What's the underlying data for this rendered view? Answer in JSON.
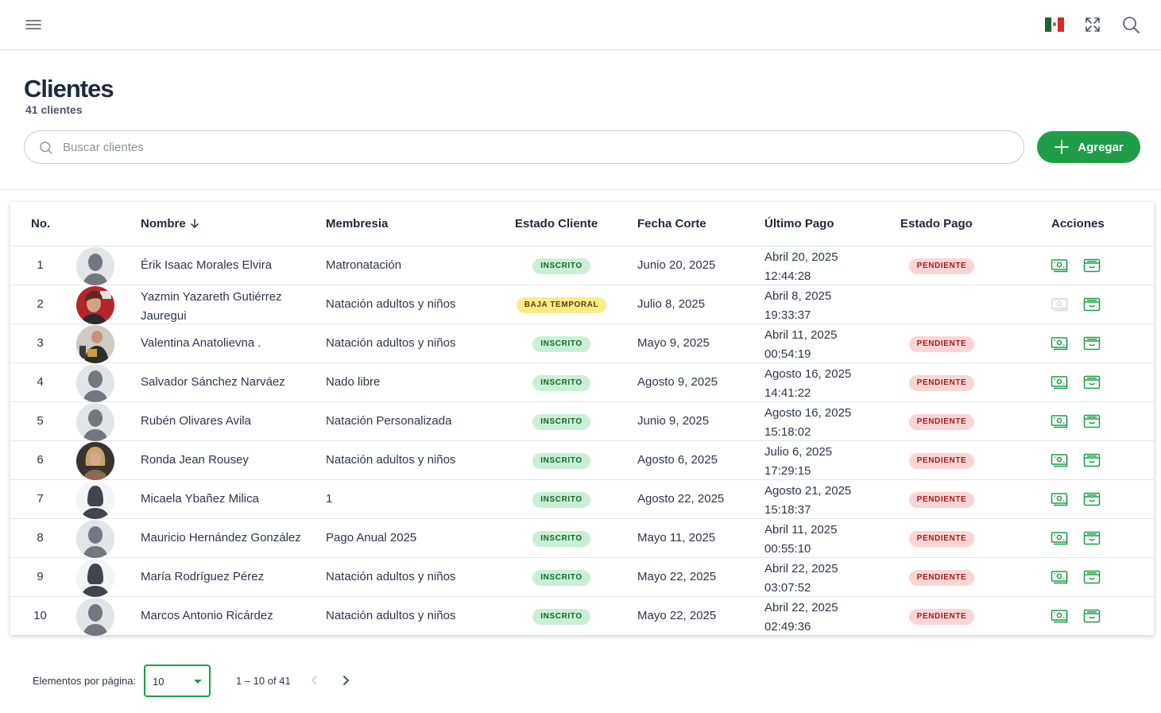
{
  "topbar": {
    "menu_icon": "hamburger-menu-icon",
    "flag_icon": "mexico-flag-icon",
    "fullscreen_icon": "fullscreen-icon",
    "search_icon": "search-icon"
  },
  "header": {
    "title": "Clientes",
    "subtitle": "41 clientes"
  },
  "search": {
    "placeholder": "Buscar clientes",
    "value": ""
  },
  "add_button": {
    "label": "Agregar",
    "icon": "plus-icon",
    "color": "#1f9d47"
  },
  "table": {
    "columns": {
      "no": "No.",
      "nombre": "Nombre",
      "membresia": "Membresia",
      "estado_cliente": "Estado Cliente",
      "fecha_corte": "Fecha Corte",
      "ultimo_pago": "Último Pago",
      "estado_pago": "Estado Pago",
      "acciones": "Acciones"
    },
    "sort_icon": "arrow-down-icon",
    "rows": [
      {
        "no": "1",
        "avatar": "default-male",
        "nombre": "Érik Isaac Morales Elvira",
        "membresia": "Matronatación",
        "estado_cliente": "INSCRITO",
        "estado_type": "ins",
        "fecha_corte": "Junio 20, 2025",
        "ultimo_pago_fecha": "Abril 20, 2025",
        "ultimo_pago_hora": "12:44:28",
        "estado_pago": "PENDIENTE",
        "pay_enabled": true
      },
      {
        "no": "2",
        "avatar": "photo-red",
        "nombre": "Yazmin Yazareth Gutiérrez Jauregui",
        "membresia": "Natación adultos y niños",
        "estado_cliente": "BAJA TEMPORAL",
        "estado_type": "baja",
        "fecha_corte": "Julio 8, 2025",
        "ultimo_pago_fecha": "Abril 8, 2025",
        "ultimo_pago_hora": "19:33:37",
        "estado_pago": "",
        "pay_enabled": false
      },
      {
        "no": "3",
        "avatar": "photo-fighter",
        "nombre": "Valentina Anatolievna .",
        "membresia": "Natación adultos y niños",
        "estado_cliente": "INSCRITO",
        "estado_type": "ins",
        "fecha_corte": "Mayo 9, 2025",
        "ultimo_pago_fecha": "Abril 11, 2025",
        "ultimo_pago_hora": "00:54:19",
        "estado_pago": "PENDIENTE",
        "pay_enabled": true
      },
      {
        "no": "4",
        "avatar": "default-male",
        "nombre": "Salvador Sánchez Narváez",
        "membresia": "Nado libre",
        "estado_cliente": "INSCRITO",
        "estado_type": "ins",
        "fecha_corte": "Agosto 9, 2025",
        "ultimo_pago_fecha": "Agosto 16, 2025",
        "ultimo_pago_hora": "14:41:22",
        "estado_pago": "PENDIENTE",
        "pay_enabled": true
      },
      {
        "no": "5",
        "avatar": "default-male",
        "nombre": "Rubén Olivares Avila",
        "membresia": "Natación Personalizada",
        "estado_cliente": "INSCRITO",
        "estado_type": "ins",
        "fecha_corte": "Junio 9, 2025",
        "ultimo_pago_fecha": "Agosto 16, 2025",
        "ultimo_pago_hora": "15:18:02",
        "estado_pago": "PENDIENTE",
        "pay_enabled": true
      },
      {
        "no": "6",
        "avatar": "photo-blonde",
        "nombre": "Ronda Jean Rousey",
        "membresia": "Natación adultos y niños",
        "estado_cliente": "INSCRITO",
        "estado_type": "ins",
        "fecha_corte": "Agosto 6, 2025",
        "ultimo_pago_fecha": "Julio 6, 2025",
        "ultimo_pago_hora": "17:29:15",
        "estado_pago": "PENDIENTE",
        "pay_enabled": true
      },
      {
        "no": "7",
        "avatar": "default-female",
        "nombre": "Micaela Ybañez Milica",
        "membresia": "1",
        "estado_cliente": "INSCRITO",
        "estado_type": "ins",
        "fecha_corte": "Agosto 22, 2025",
        "ultimo_pago_fecha": "Agosto 21, 2025",
        "ultimo_pago_hora": "15:18:37",
        "estado_pago": "PENDIENTE",
        "pay_enabled": true
      },
      {
        "no": "8",
        "avatar": "default-male",
        "nombre": "Mauricio Hernández González",
        "membresia": "Pago Anual 2025",
        "estado_cliente": "INSCRITO",
        "estado_type": "ins",
        "fecha_corte": "Mayo 11, 2025",
        "ultimo_pago_fecha": "Abril 11, 2025",
        "ultimo_pago_hora": "00:55:10",
        "estado_pago": "PENDIENTE",
        "pay_enabled": true
      },
      {
        "no": "9",
        "avatar": "default-female",
        "nombre": "María Rodríguez Pérez",
        "membresia": "Natación adultos y niños",
        "estado_cliente": "INSCRITO",
        "estado_type": "ins",
        "fecha_corte": "Mayo 22, 2025",
        "ultimo_pago_fecha": "Abril 22, 2025",
        "ultimo_pago_hora": "03:07:52",
        "estado_pago": "PENDIENTE",
        "pay_enabled": true
      },
      {
        "no": "10",
        "avatar": "default-male",
        "nombre": "Marcos Antonio Ricárdez",
        "membresia": "Natación adultos y niños",
        "estado_cliente": "INSCRITO",
        "estado_type": "ins",
        "fecha_corte": "Mayo 22, 2025",
        "ultimo_pago_fecha": "Abril 22, 2025",
        "ultimo_pago_hora": "02:49:36",
        "estado_pago": "PENDIENTE",
        "pay_enabled": true
      }
    ]
  },
  "paginator": {
    "label": "Elementos por página:",
    "page_size": "10",
    "range": "1 – 10 of 41"
  },
  "colors": {
    "accent": "#1f9d47",
    "inscrito_bg": "#c9f0d6",
    "baja_bg": "#fdeb8a",
    "pendiente_bg": "#fbd5d5"
  }
}
